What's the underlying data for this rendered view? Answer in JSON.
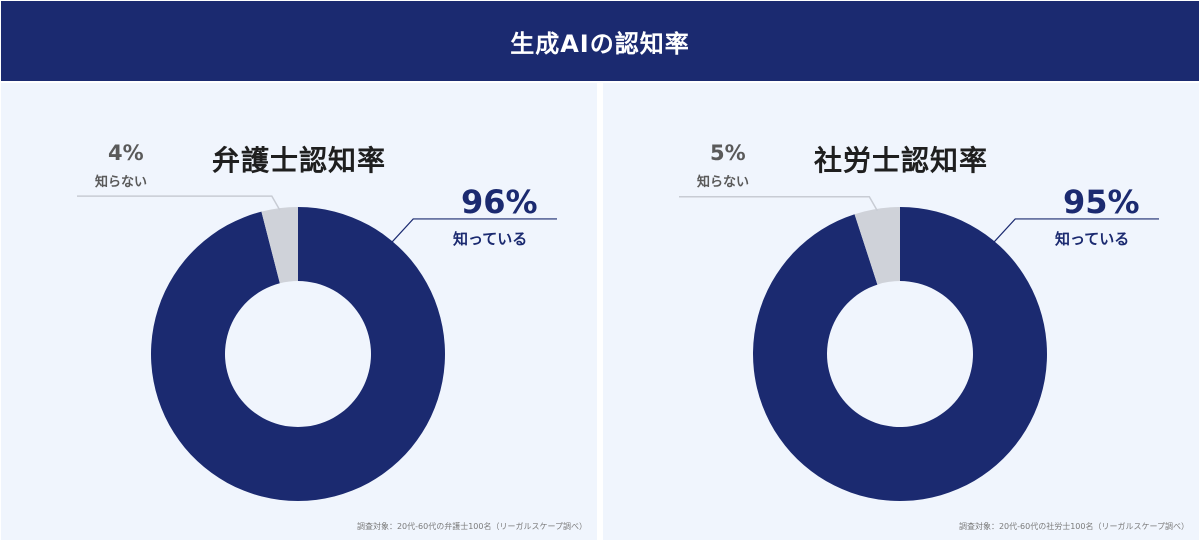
{
  "header": {
    "title": "生成AIの認知率"
  },
  "chart_data": [
    {
      "type": "pie",
      "title": "弁護士認知率",
      "slices": [
        {
          "label": "知っている",
          "value": 96,
          "display": "96%",
          "color": "#1b2a70"
        },
        {
          "label": "知らない",
          "value": 4,
          "display": "4%",
          "color": "#cfd2d9"
        }
      ],
      "source": "調査対象：20代-60代の弁護士100名（リーガルスケープ調べ）"
    },
    {
      "type": "pie",
      "title": "社労士認知率",
      "slices": [
        {
          "label": "知っている",
          "value": 95,
          "display": "95%",
          "color": "#1b2a70"
        },
        {
          "label": "知らない",
          "value": 5,
          "display": "5%",
          "color": "#cfd2d9"
        }
      ],
      "source": "調査対象：20代-60代の社労士100名（リーガルスケープ調べ）"
    }
  ]
}
